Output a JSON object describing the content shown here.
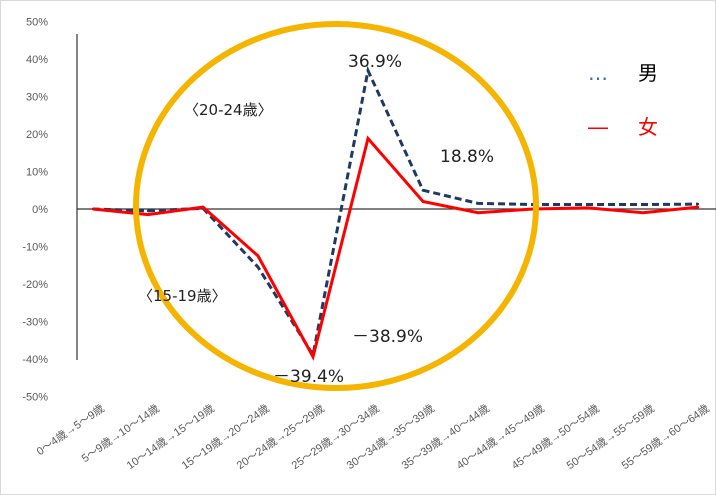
{
  "chart_data": {
    "type": "line",
    "categories": [
      "0～4歳→5～9歳",
      "5～9歳→10～14歳",
      "10～14歳→15～19歳",
      "15～19歳→20～24歳",
      "20～24歳→25～29歳",
      "25～29歳→30～34歳",
      "30～34歳→35～39歳",
      "35～39歳→40～44歳",
      "40～44歳→45～49歳",
      "45～49歳→50～54歳",
      "50～54歳→55～59歳",
      "55～59歳→60～64歳"
    ],
    "series": [
      {
        "name": "男",
        "color": "#1f3864",
        "style": "dashed",
        "values": [
          0.0,
          -0.5,
          0.2,
          -15.5,
          -38.9,
          36.9,
          5.0,
          1.5,
          1.2,
          1.2,
          1.2,
          1.3
        ]
      },
      {
        "name": "女",
        "color": "#ff0000",
        "style": "solid",
        "values": [
          0.0,
          -1.5,
          0.5,
          -12.5,
          -39.4,
          18.8,
          2.0,
          -1.0,
          0.0,
          0.3,
          -1.0,
          0.5
        ]
      }
    ],
    "ylim": [
      -50,
      50
    ],
    "yticks": [
      "50%",
      "40%",
      "30%",
      "20%",
      "10%",
      "0%",
      "-10%",
      "-20%",
      "-30%",
      "-40%",
      "-50%"
    ],
    "annotations": {
      "peak_male": "36.9%",
      "peak_female": "18.8%",
      "trough_male": "－38.9%",
      "trough_female": "－39.4%",
      "label_20_24": "〈20-24歳〉",
      "label_15_19": "〈15-19歳〉"
    },
    "legend": {
      "position": "top-right",
      "male_symbol": "…",
      "male_label": "男",
      "female_symbol": "―",
      "female_label": "女"
    },
    "highlight_color": "#f5b400"
  }
}
